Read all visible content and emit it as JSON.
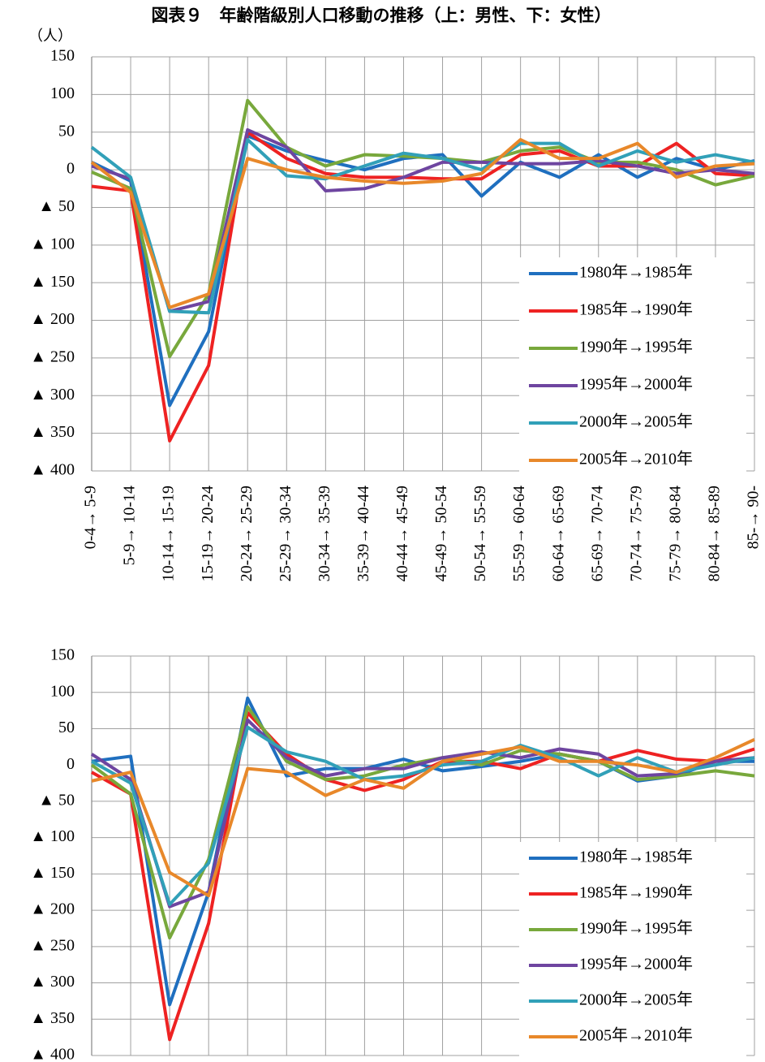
{
  "chart_data": [
    {
      "type": "line",
      "title": "図表９　年齢階級別人口移動の推移（上：男性、下：女性）",
      "y_label": "（人）",
      "categories": [
        "0-4→ 5-9",
        "5-9→ 10-14",
        "10-14→ 15-19",
        "15-19→ 20-24",
        "20-24→ 25-29",
        "25-29→ 30-34",
        "30-34→ 35-39",
        "35-39→ 40-44",
        "40-44→ 45-49",
        "45-49→ 50-54",
        "50-54→ 55-59",
        "55-59→ 60-64",
        "60-64→ 65-69",
        "65-69→ 70-74",
        "70-74→ 75-79",
        "75-79→ 80-84",
        "80-84→ 85-89",
        "85-→ 90-"
      ],
      "ylim": [
        -400,
        150
      ],
      "yticks": [
        150,
        100,
        50,
        0,
        {
          "value": -50,
          "label": "▲ 50"
        },
        {
          "value": -100,
          "label": "▲ 100"
        },
        {
          "value": -150,
          "label": "▲ 150"
        },
        {
          "value": -200,
          "label": "▲ 200"
        },
        {
          "value": -250,
          "label": "▲ 250"
        },
        {
          "value": -300,
          "label": "▲ 300"
        },
        {
          "value": -350,
          "label": "▲ 350"
        },
        {
          "value": -400,
          "label": "▲ 400"
        }
      ],
      "grid": true,
      "legend": "lower right",
      "series": [
        {
          "name": "1980年→1985年",
          "color": "#1f6fbf",
          "values": [
            10,
            -15,
            -313,
            -215,
            45,
            25,
            12,
            0,
            15,
            20,
            -35,
            10,
            -10,
            20,
            -10,
            15,
            0,
            12
          ]
        },
        {
          "name": "1985年→1990年",
          "color": "#ee2222",
          "values": [
            -22,
            -28,
            -360,
            -260,
            50,
            15,
            -5,
            -10,
            -10,
            -12,
            -12,
            20,
            25,
            5,
            5,
            35,
            -5,
            -8
          ]
        },
        {
          "name": "1990年→1995年",
          "color": "#78a83c",
          "values": [
            -3,
            -25,
            -248,
            -165,
            92,
            30,
            5,
            20,
            18,
            15,
            10,
            25,
            30,
            10,
            10,
            0,
            -20,
            -8
          ]
        },
        {
          "name": "1995年→2000年",
          "color": "#6e45a0",
          "values": [
            5,
            -12,
            -188,
            -175,
            53,
            30,
            -28,
            -25,
            -10,
            10,
            10,
            8,
            8,
            12,
            5,
            -5,
            0,
            -5
          ]
        },
        {
          "name": "2000年→2005年",
          "color": "#31a0b8",
          "values": [
            30,
            -10,
            -188,
            -190,
            40,
            -8,
            -12,
            5,
            22,
            15,
            0,
            35,
            35,
            5,
            25,
            10,
            20,
            10
          ]
        },
        {
          "name": "2005年→2010年",
          "color": "#e8882a",
          "values": [
            10,
            -30,
            -183,
            -165,
            15,
            0,
            -10,
            -15,
            -18,
            -15,
            -5,
            40,
            15,
            15,
            35,
            -10,
            5,
            8
          ]
        }
      ]
    },
    {
      "type": "line",
      "categories": [
        null,
        null,
        null,
        null,
        null,
        null,
        null,
        null,
        null,
        null,
        null,
        null,
        null,
        null,
        null,
        null,
        null,
        null
      ],
      "ylim": [
        -400,
        150
      ],
      "yticks": [
        150,
        100,
        50,
        0,
        {
          "value": -50,
          "label": "▲ 50"
        },
        {
          "value": -100,
          "label": "▲ 100"
        },
        {
          "value": -150,
          "label": "▲ 150"
        },
        {
          "value": -200,
          "label": "▲ 200"
        },
        {
          "value": -250,
          "label": "▲ 250"
        },
        {
          "value": -300,
          "label": "▲ 300"
        },
        {
          "value": -350,
          "label": "▲ 350"
        },
        {
          "value": -400,
          "label": "▲ 400"
        }
      ],
      "grid": true,
      "legend": "lower right",
      "series": [
        {
          "name": "1980年→1985年",
          "color": "#1f6fbf",
          "values": [
            5,
            12,
            -330,
            -175,
            92,
            -15,
            -5,
            -5,
            8,
            -8,
            -2,
            5,
            15,
            5,
            -22,
            -15,
            5,
            5
          ]
        },
        {
          "name": "1985年→1990年",
          "color": "#ee2222",
          "values": [
            -10,
            -40,
            -378,
            -218,
            72,
            15,
            -20,
            -35,
            -20,
            5,
            5,
            -5,
            15,
            5,
            20,
            8,
            5,
            22
          ]
        },
        {
          "name": "1990年→1995年",
          "color": "#78a83c",
          "values": [
            0,
            -40,
            -238,
            -130,
            80,
            5,
            -20,
            -15,
            0,
            10,
            0,
            20,
            15,
            5,
            -20,
            -15,
            -8,
            -15
          ]
        },
        {
          "name": "1995年→2000年",
          "color": "#6e45a0",
          "values": [
            15,
            -20,
            -195,
            -175,
            62,
            10,
            -15,
            -5,
            -5,
            10,
            18,
            10,
            22,
            15,
            -15,
            -12,
            5,
            10
          ]
        },
        {
          "name": "2000年→2005年",
          "color": "#31a0b8",
          "values": [
            5,
            -25,
            -192,
            -135,
            52,
            18,
            5,
            -20,
            -15,
            0,
            5,
            27,
            10,
            -15,
            10,
            -10,
            0,
            10
          ]
        },
        {
          "name": "2005年→2010年",
          "color": "#e8882a",
          "values": [
            -22,
            -10,
            -148,
            -180,
            -5,
            -10,
            -42,
            -20,
            -32,
            5,
            15,
            25,
            5,
            5,
            0,
            -10,
            10,
            35
          ]
        }
      ]
    }
  ]
}
